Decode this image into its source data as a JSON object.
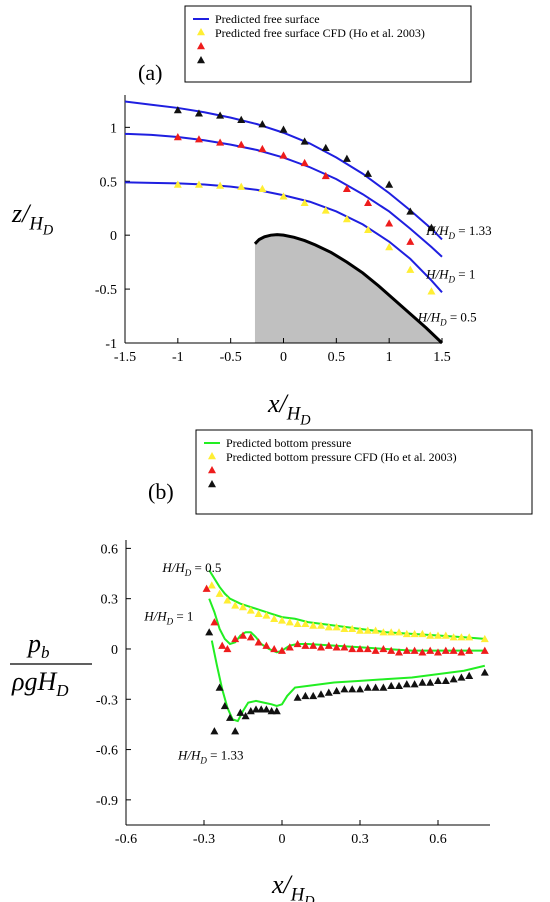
{
  "colors": {
    "blue_line": "#1f1fe0",
    "green_line": "#22ee22",
    "yellow_marker": "#ffee33",
    "red_marker": "#ee1c1c",
    "black_marker": "#111111",
    "weir_fill": "#c0c0c0"
  },
  "chart_data": [
    {
      "type": "line",
      "panel_label": "(a)",
      "xlabel_main": "x/",
      "xlabel_sub": "H",
      "xlabel_subsub": "D",
      "ylabel_main": "z/",
      "ylabel_sub": "H",
      "ylabel_subsub": "D",
      "xlim": [
        -1.5,
        1.5
      ],
      "ylim": [
        -1,
        1.3
      ],
      "xticks": [
        -1.5,
        -1,
        -0.5,
        0,
        0.5,
        1,
        1.5
      ],
      "xtick_labels": [
        "-1.5",
        "-1",
        "-0.5",
        "0",
        "0.5",
        "1",
        "1.5"
      ],
      "yticks": [
        -1,
        -0.5,
        0,
        0.5,
        1
      ],
      "ytick_labels": [
        "-1",
        "-0.5",
        "0",
        "0.5",
        "1"
      ],
      "legend": [
        {
          "label": "Predicted  free surface",
          "kind": "line",
          "color": "blue_line"
        },
        {
          "label": "Predicted free surface CFD (Ho et al. 2003)",
          "kind": "marker",
          "color": "yellow_marker"
        },
        {
          "label": "",
          "kind": "marker",
          "color": "red_marker"
        },
        {
          "label": "",
          "kind": "marker",
          "color": "black_marker"
        }
      ],
      "annotations": [
        {
          "main": "H/H",
          "sub": "D",
          "rest": " = 1.33",
          "anchor": [
            1.35,
            0.0
          ]
        },
        {
          "main": "H/H",
          "sub": "D",
          "rest": " = 1",
          "anchor": [
            1.35,
            -0.4
          ]
        },
        {
          "main": "H/H",
          "sub": "D",
          "rest": " = 0.5",
          "anchor": [
            1.27,
            -0.8
          ]
        }
      ],
      "weir_profile": {
        "x": [
          -0.27,
          -0.23,
          -0.18,
          -0.12,
          -0.06,
          0,
          0.1,
          0.2,
          0.3,
          0.45,
          0.6,
          0.75,
          0.9,
          1.05,
          1.2,
          1.35,
          1.5
        ],
        "y": [
          -0.08,
          -0.04,
          -0.015,
          0.0,
          0.005,
          0.0,
          -0.02,
          -0.05,
          -0.09,
          -0.16,
          -0.25,
          -0.35,
          -0.47,
          -0.6,
          -0.73,
          -0.86,
          -1.0
        ]
      },
      "series": [
        {
          "name": "H/HD = 1.33 predicted",
          "kind": "line",
          "color": "blue_line",
          "x": [
            -1.5,
            -1.25,
            -1.0,
            -0.75,
            -0.5,
            -0.25,
            0,
            0.25,
            0.5,
            0.75,
            1.0,
            1.2,
            1.4,
            1.5
          ],
          "y": [
            1.24,
            1.21,
            1.18,
            1.14,
            1.09,
            1.03,
            0.95,
            0.85,
            0.72,
            0.57,
            0.39,
            0.23,
            0.06,
            -0.04
          ]
        },
        {
          "name": "H/HD = 1 predicted",
          "kind": "line",
          "color": "blue_line",
          "x": [
            -1.5,
            -1.25,
            -1.0,
            -0.75,
            -0.5,
            -0.25,
            0,
            0.25,
            0.5,
            0.75,
            1.0,
            1.2,
            1.4,
            1.5
          ],
          "y": [
            0.94,
            0.93,
            0.91,
            0.88,
            0.84,
            0.79,
            0.72,
            0.63,
            0.52,
            0.38,
            0.22,
            0.06,
            -0.11,
            -0.2
          ]
        },
        {
          "name": "H/HD = 0.5 predicted",
          "kind": "line",
          "color": "blue_line",
          "x": [
            -1.5,
            -1.25,
            -1.0,
            -0.75,
            -0.5,
            -0.25,
            0,
            0.25,
            0.5,
            0.75,
            1.0,
            1.2,
            1.4,
            1.5
          ],
          "y": [
            0.49,
            0.485,
            0.48,
            0.47,
            0.45,
            0.42,
            0.37,
            0.31,
            0.22,
            0.1,
            -0.06,
            -0.22,
            -0.42,
            -0.53
          ]
        },
        {
          "name": "H/HD = 1.33 CFD",
          "kind": "marker",
          "color": "black_marker",
          "x": [
            -1.0,
            -0.8,
            -0.6,
            -0.4,
            -0.2,
            0.0,
            0.2,
            0.4,
            0.6,
            0.8,
            1.0,
            1.2,
            1.4
          ],
          "y": [
            1.16,
            1.13,
            1.11,
            1.07,
            1.03,
            0.98,
            0.87,
            0.81,
            0.71,
            0.57,
            0.47,
            0.22,
            0.07
          ]
        },
        {
          "name": "H/HD = 1 CFD",
          "kind": "marker",
          "color": "red_marker",
          "x": [
            -1.0,
            -0.8,
            -0.6,
            -0.4,
            -0.2,
            0.0,
            0.2,
            0.4,
            0.6,
            0.8,
            1.0,
            1.2
          ],
          "y": [
            0.91,
            0.89,
            0.86,
            0.84,
            0.8,
            0.74,
            0.67,
            0.55,
            0.43,
            0.3,
            0.11,
            -0.06
          ]
        },
        {
          "name": "H/HD = 0.5 CFD",
          "kind": "marker",
          "color": "yellow_marker",
          "x": [
            -1.0,
            -0.8,
            -0.6,
            -0.4,
            -0.2,
            0.0,
            0.2,
            0.4,
            0.6,
            0.8,
            1.0,
            1.2,
            1.4
          ],
          "y": [
            0.47,
            0.47,
            0.46,
            0.45,
            0.43,
            0.36,
            0.3,
            0.23,
            0.15,
            0.05,
            -0.11,
            -0.32,
            -0.52
          ]
        }
      ]
    },
    {
      "type": "line",
      "panel_label": "(b)",
      "xlabel_main": "x/",
      "xlabel_sub": "H",
      "xlabel_subsub": "D",
      "ylabel_num_main": "p",
      "ylabel_num_sub": "b",
      "ylabel_den_main": "ρgH",
      "ylabel_den_sub": "D",
      "xlim": [
        -0.6,
        0.8
      ],
      "ylim": [
        -1.05,
        0.65
      ],
      "xticks": [
        -0.6,
        -0.3,
        0,
        0.3,
        0.6
      ],
      "xtick_labels": [
        "-0.6",
        "-0.3",
        "0",
        "0.3",
        "0.6"
      ],
      "yticks": [
        0.6,
        0.3,
        0,
        -0.3,
        -0.6,
        -0.9
      ],
      "ytick_labels": [
        "0.6",
        "0.3",
        "0",
        "-0.3",
        "-0.6",
        "-0.9"
      ],
      "legend": [
        {
          "label": "Predicted  bottom pressure",
          "kind": "line",
          "color": "green_line"
        },
        {
          "label": "Predicted bottom pressure CFD (Ho et al. 2003)",
          "kind": "marker",
          "color": "yellow_marker"
        },
        {
          "label": "",
          "kind": "marker",
          "color": "red_marker"
        },
        {
          "label": "",
          "kind": "marker",
          "color": "black_marker"
        }
      ],
      "annotations": [
        {
          "main": "H/H",
          "sub": "D",
          "rest": " = 0.5",
          "anchor": [
            -0.46,
            0.46
          ]
        },
        {
          "main": "H/H",
          "sub": "D",
          "rest": " = 1",
          "anchor": [
            -0.53,
            0.17
          ]
        },
        {
          "main": "H/H",
          "sub": "D",
          "rest": " = 1.33",
          "anchor": [
            -0.4,
            -0.66
          ]
        }
      ],
      "series": [
        {
          "name": "H/HD = 0.5 predicted",
          "kind": "line",
          "color": "green_line",
          "x": [
            -0.28,
            -0.26,
            -0.24,
            -0.22,
            -0.2,
            -0.16,
            -0.12,
            -0.08,
            -0.04,
            0,
            0.05,
            0.1,
            0.2,
            0.3,
            0.4,
            0.5,
            0.6,
            0.7,
            0.78
          ],
          "y": [
            0.47,
            0.42,
            0.37,
            0.33,
            0.3,
            0.27,
            0.25,
            0.23,
            0.21,
            0.19,
            0.18,
            0.16,
            0.14,
            0.12,
            0.1,
            0.09,
            0.08,
            0.07,
            0.06
          ]
        },
        {
          "name": "H/HD = 1 predicted",
          "kind": "line",
          "color": "green_line",
          "x": [
            -0.28,
            -0.26,
            -0.24,
            -0.22,
            -0.2,
            -0.18,
            -0.16,
            -0.14,
            -0.12,
            -0.1,
            -0.08,
            -0.05,
            -0.02,
            0,
            0.03,
            0.06,
            0.1,
            0.2,
            0.3,
            0.4,
            0.5,
            0.6,
            0.7,
            0.78
          ],
          "y": [
            0.3,
            0.22,
            0.12,
            0.06,
            0.03,
            0.04,
            0.08,
            0.1,
            0.1,
            0.07,
            0.03,
            0.0,
            -0.02,
            -0.01,
            0.02,
            0.03,
            0.03,
            0.02,
            0.01,
            0.0,
            -0.01,
            -0.01,
            -0.01,
            -0.01
          ]
        },
        {
          "name": "H/HD = 1.33 predicted",
          "kind": "line",
          "color": "green_line",
          "x": [
            -0.27,
            -0.25,
            -0.23,
            -0.21,
            -0.19,
            -0.17,
            -0.15,
            -0.13,
            -0.1,
            -0.07,
            -0.04,
            -0.02,
            0,
            0.02,
            0.05,
            0.1,
            0.2,
            0.3,
            0.4,
            0.5,
            0.6,
            0.7,
            0.78
          ],
          "y": [
            0.05,
            -0.1,
            -0.24,
            -0.35,
            -0.42,
            -0.43,
            -0.37,
            -0.32,
            -0.31,
            -0.32,
            -0.33,
            -0.34,
            -0.33,
            -0.28,
            -0.23,
            -0.22,
            -0.2,
            -0.19,
            -0.18,
            -0.17,
            -0.15,
            -0.13,
            -0.1
          ]
        },
        {
          "name": "H/HD = 0.5 CFD",
          "kind": "marker",
          "color": "yellow_marker",
          "x": [
            -0.27,
            -0.24,
            -0.21,
            -0.18,
            -0.15,
            -0.12,
            -0.09,
            -0.06,
            -0.03,
            0.0,
            0.03,
            0.06,
            0.09,
            0.12,
            0.15,
            0.18,
            0.21,
            0.24,
            0.27,
            0.3,
            0.33,
            0.36,
            0.39,
            0.42,
            0.45,
            0.48,
            0.51,
            0.54,
            0.57,
            0.6,
            0.63,
            0.66,
            0.69,
            0.72,
            0.78
          ],
          "y": [
            0.38,
            0.33,
            0.29,
            0.26,
            0.25,
            0.23,
            0.21,
            0.2,
            0.18,
            0.17,
            0.16,
            0.15,
            0.15,
            0.14,
            0.14,
            0.13,
            0.13,
            0.12,
            0.12,
            0.11,
            0.11,
            0.11,
            0.1,
            0.1,
            0.1,
            0.09,
            0.09,
            0.09,
            0.08,
            0.08,
            0.08,
            0.07,
            0.07,
            0.07,
            0.06
          ]
        },
        {
          "name": "H/HD = 1 CFD",
          "kind": "marker",
          "color": "red_marker",
          "x": [
            -0.29,
            -0.26,
            -0.23,
            -0.21,
            -0.18,
            -0.15,
            -0.12,
            -0.09,
            -0.06,
            -0.03,
            0.0,
            0.03,
            0.06,
            0.09,
            0.12,
            0.15,
            0.18,
            0.21,
            0.24,
            0.27,
            0.3,
            0.33,
            0.36,
            0.39,
            0.42,
            0.45,
            0.48,
            0.51,
            0.54,
            0.57,
            0.6,
            0.63,
            0.66,
            0.69,
            0.72,
            0.78
          ],
          "y": [
            0.36,
            0.16,
            0.02,
            0.0,
            0.06,
            0.08,
            0.07,
            0.04,
            0.02,
            0.0,
            -0.01,
            0.01,
            0.03,
            0.02,
            0.02,
            0.01,
            0.02,
            0.01,
            0.01,
            0.0,
            0.0,
            0.0,
            -0.01,
            0.0,
            -0.01,
            -0.02,
            -0.01,
            -0.01,
            -0.02,
            -0.01,
            -0.02,
            -0.01,
            -0.01,
            -0.02,
            -0.01,
            -0.01
          ]
        },
        {
          "name": "H/HD = 1.33 CFD",
          "kind": "marker",
          "color": "black_marker",
          "x": [
            -0.28,
            -0.26,
            -0.24,
            -0.22,
            -0.2,
            -0.18,
            -0.16,
            -0.14,
            -0.12,
            -0.1,
            -0.08,
            -0.06,
            -0.04,
            -0.02,
            0.06,
            0.09,
            0.12,
            0.15,
            0.18,
            0.21,
            0.24,
            0.27,
            0.3,
            0.33,
            0.36,
            0.39,
            0.42,
            0.45,
            0.48,
            0.51,
            0.54,
            0.57,
            0.6,
            0.63,
            0.66,
            0.69,
            0.72,
            0.78
          ],
          "y": [
            0.1,
            -0.49,
            -0.23,
            -0.34,
            -0.41,
            -0.49,
            -0.38,
            -0.4,
            -0.37,
            -0.36,
            -0.36,
            -0.36,
            -0.37,
            -0.37,
            -0.29,
            -0.28,
            -0.28,
            -0.27,
            -0.26,
            -0.25,
            -0.24,
            -0.24,
            -0.24,
            -0.23,
            -0.23,
            -0.23,
            -0.22,
            -0.22,
            -0.21,
            -0.21,
            -0.2,
            -0.2,
            -0.19,
            -0.19,
            -0.18,
            -0.17,
            -0.16,
            -0.14
          ]
        }
      ]
    }
  ]
}
